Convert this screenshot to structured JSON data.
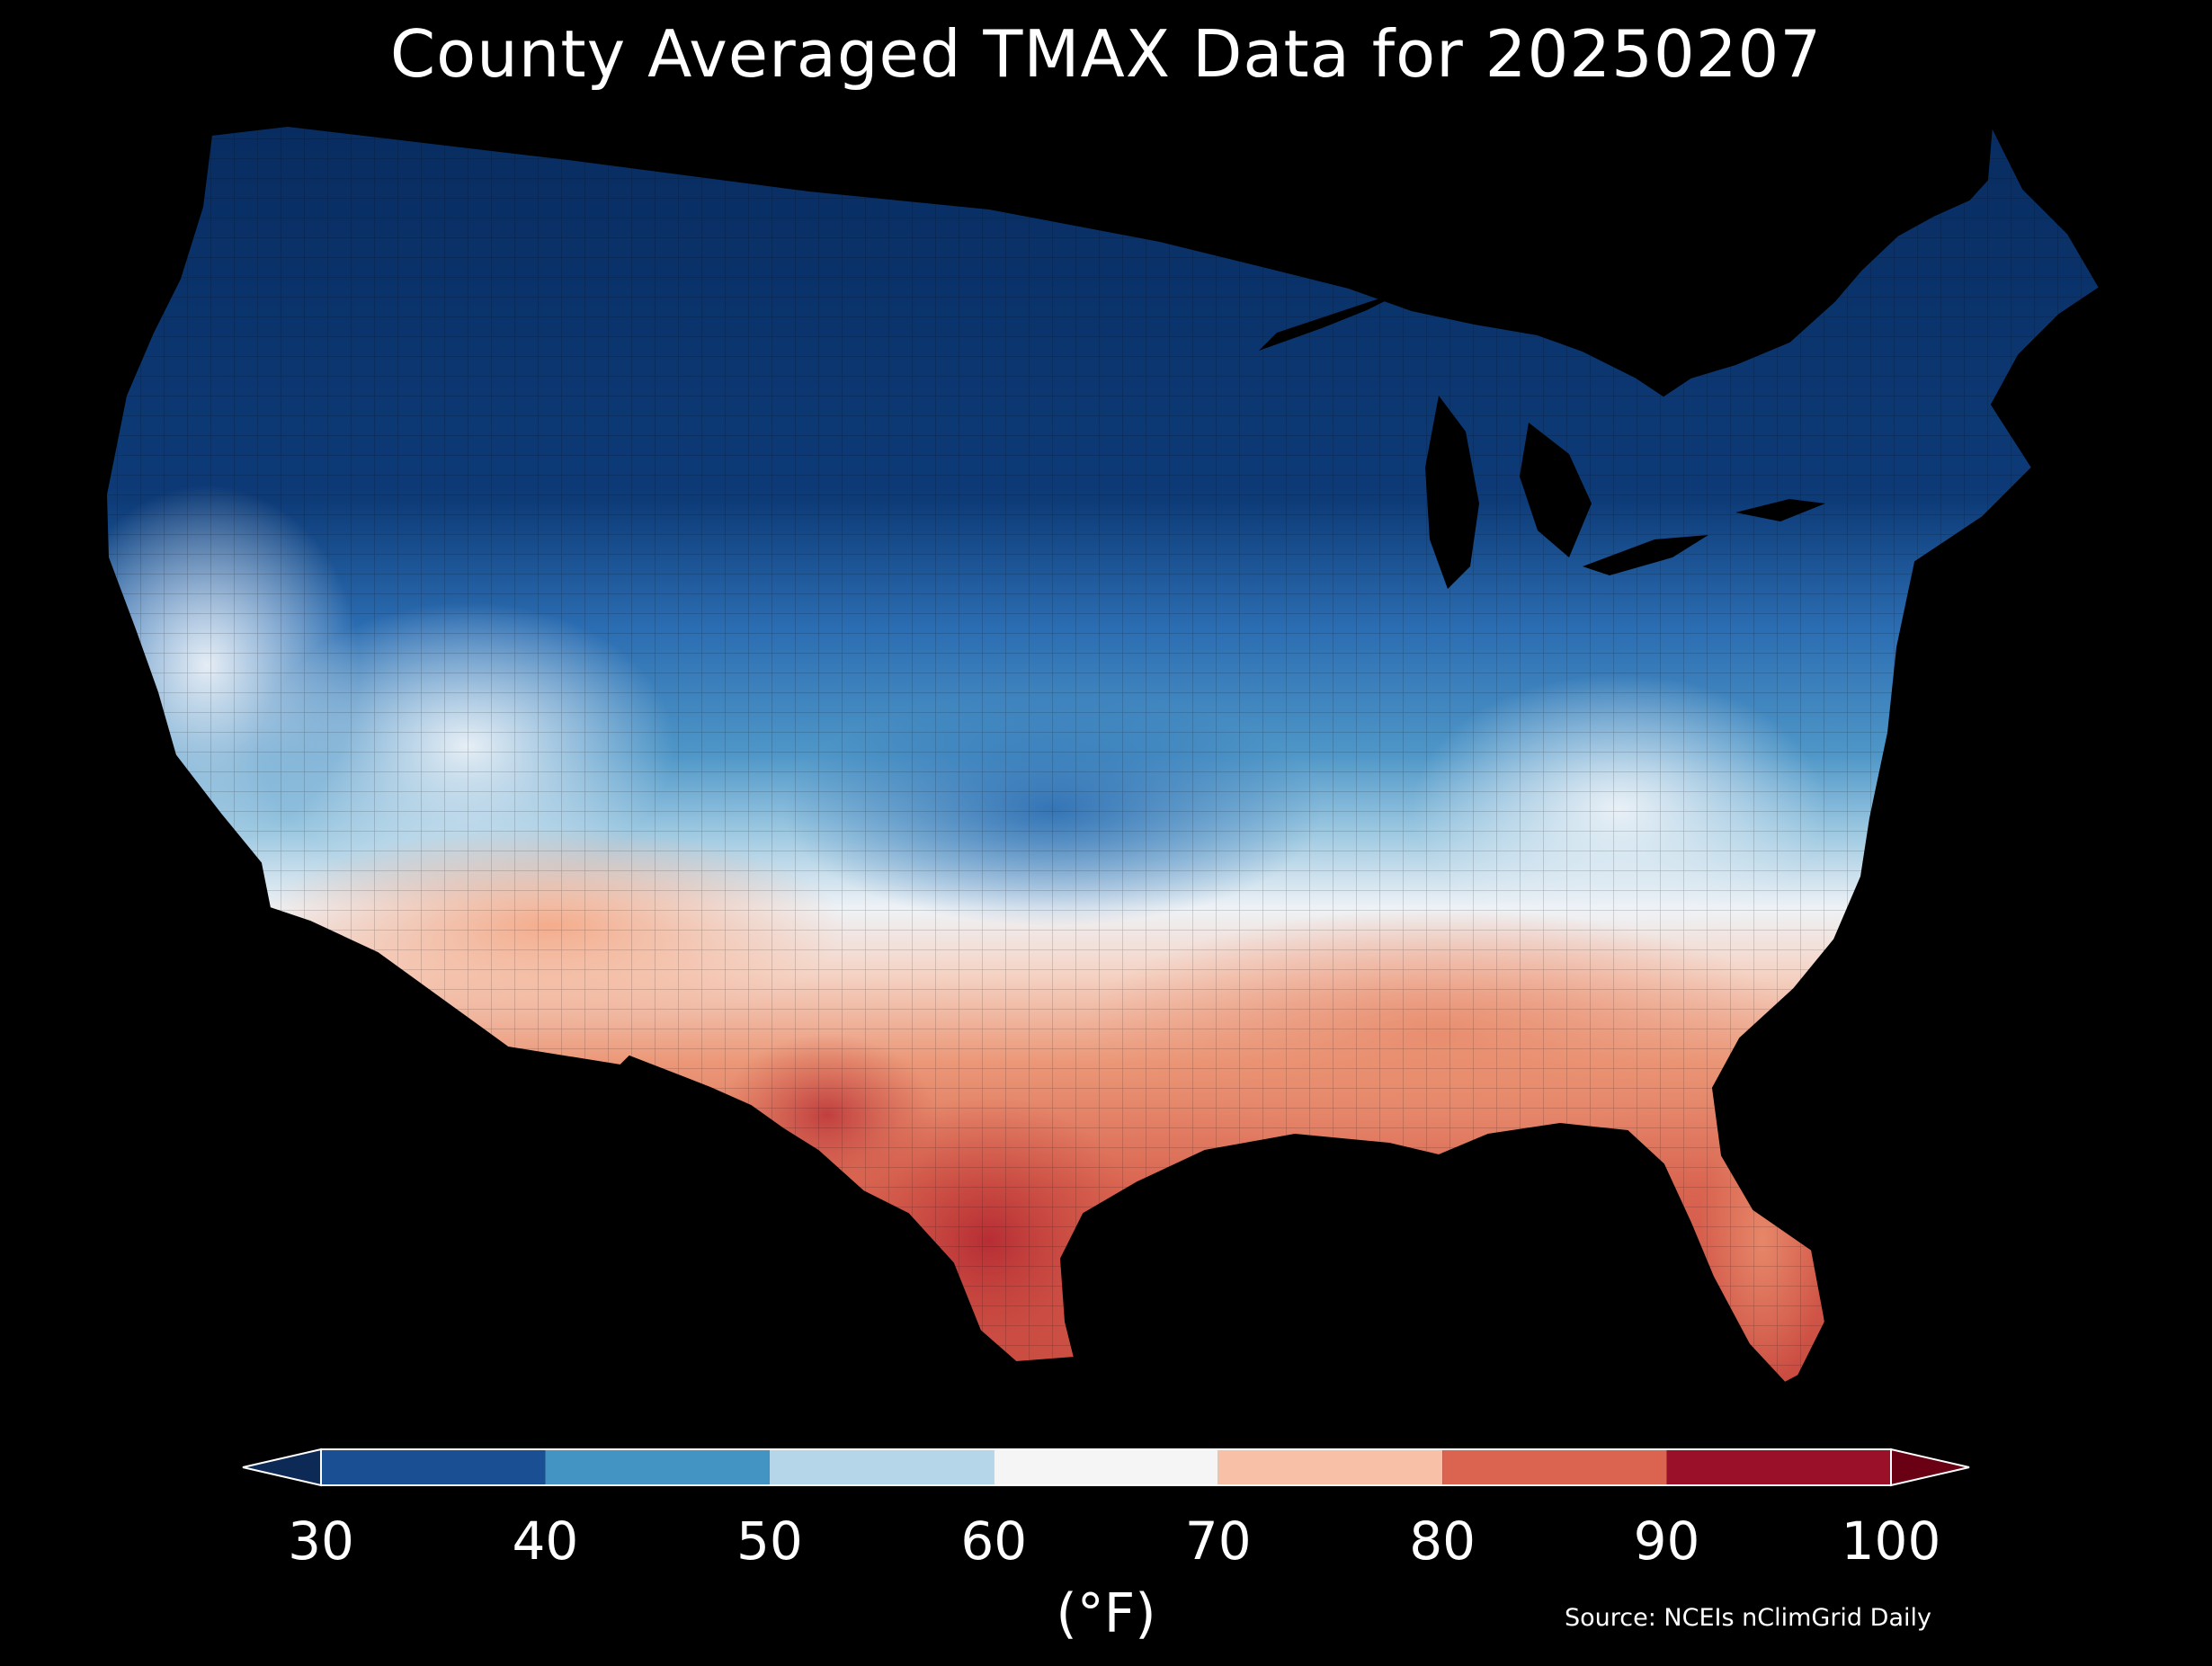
{
  "title": "County Averaged TMAX Data for 20250207",
  "source": "Source: NCEIs nClimGrid Daily",
  "colorbar": {
    "unit_label": "(°F)",
    "ticks": [
      "30",
      "40",
      "50",
      "60",
      "70",
      "80",
      "90",
      "100"
    ],
    "values": [
      30,
      40,
      50,
      60,
      70,
      80,
      90,
      100
    ],
    "colors": [
      "#1a4f93",
      "#4393c3",
      "#b4d6e8",
      "#f5f5f5",
      "#f8c0a6",
      "#db6450",
      "#9b1029"
    ],
    "under_color": "#0c2a55",
    "over_color": "#6a0014",
    "extend": "both"
  },
  "map": {
    "region": "Contiguous United States counties",
    "colormap": "RdBu_r",
    "vmin": 30,
    "vmax": 100,
    "regional_values_f": [
      {
        "region": "Pacific Northwest interior",
        "value": 33
      },
      {
        "region": "Northern Rockies / Plains",
        "value": 30
      },
      {
        "region": "Upper Midwest / Great Lakes",
        "value": 30
      },
      {
        "region": "New England",
        "value": 33
      },
      {
        "region": "Mid-Atlantic / Ohio Valley",
        "value": 42
      },
      {
        "region": "Central Plains",
        "value": 46
      },
      {
        "region": "Great Basin",
        "value": 52
      },
      {
        "region": "California coast",
        "value": 56
      },
      {
        "region": "Southwest deserts",
        "value": 66
      },
      {
        "region": "Carolinas / Tennessee",
        "value": 64
      },
      {
        "region": "Southeast / Gulf coast",
        "value": 76
      },
      {
        "region": "Florida",
        "value": 81
      },
      {
        "region": "Texas",
        "value": 84
      },
      {
        "region": "South Texas",
        "value": 92
      }
    ]
  }
}
